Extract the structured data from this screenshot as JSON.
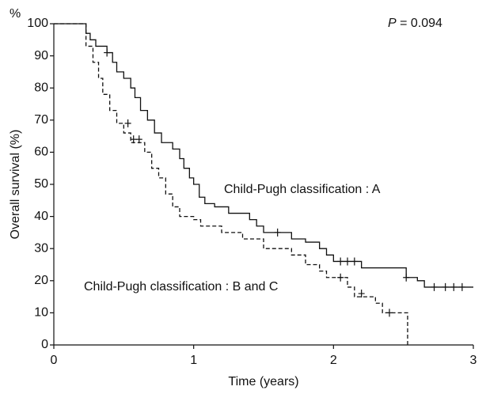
{
  "chart_data": {
    "type": "line",
    "step": true,
    "unit_label": "%",
    "p_label": "P",
    "p_value": "= 0.094",
    "xlabel": "Time (years)",
    "ylabel": "Overall survival (%)",
    "xlim": [
      0,
      3
    ],
    "ylim": [
      0,
      100
    ],
    "xticks": [
      0,
      1,
      2,
      3
    ],
    "yticks": [
      0,
      10,
      20,
      30,
      40,
      50,
      60,
      70,
      80,
      90,
      100
    ],
    "grid": false,
    "series": [
      {
        "name": "Child-Pugh classification : A",
        "color": "#111111",
        "dash": false,
        "x": [
          0,
          0.23,
          0.26,
          0.3,
          0.38,
          0.42,
          0.45,
          0.5,
          0.55,
          0.58,
          0.62,
          0.67,
          0.72,
          0.77,
          0.85,
          0.9,
          0.93,
          0.97,
          1.0,
          1.04,
          1.08,
          1.15,
          1.25,
          1.4,
          1.45,
          1.5,
          1.7,
          1.8,
          1.9,
          1.95,
          2.0,
          2.2,
          2.52,
          2.6,
          2.65,
          3.0
        ],
        "values": [
          100,
          97,
          95,
          93,
          91,
          88,
          85,
          83,
          80,
          77,
          73,
          70,
          66,
          63,
          61,
          58,
          55,
          52,
          50,
          46,
          44,
          43,
          41,
          39,
          37,
          35,
          33,
          32,
          30,
          28,
          26,
          24,
          21,
          20,
          18,
          18
        ],
        "censored_x": [
          0.38,
          1.6,
          2.05,
          2.1,
          2.15,
          2.52,
          2.72,
          2.8,
          2.86,
          2.92
        ],
        "censored_values": [
          91,
          35,
          26,
          26,
          26,
          21,
          18,
          18,
          18,
          18
        ]
      },
      {
        "name": "Child-Pugh classification : B and C",
        "color": "#111111",
        "dash": true,
        "x": [
          0,
          0.23,
          0.28,
          0.32,
          0.35,
          0.4,
          0.45,
          0.5,
          0.55,
          0.65,
          0.7,
          0.75,
          0.8,
          0.85,
          0.9,
          1.0,
          1.05,
          1.2,
          1.35,
          1.5,
          1.7,
          1.8,
          1.9,
          1.95,
          2.1,
          2.15,
          2.3,
          2.35,
          2.53
        ],
        "values": [
          100,
          93,
          88,
          83,
          78,
          73,
          69,
          66,
          63,
          60,
          55,
          52,
          47,
          43,
          40,
          39,
          37,
          35,
          33,
          30,
          28,
          25,
          23,
          21,
          18,
          15,
          13,
          10,
          0
        ],
        "censored_x": [
          0.53,
          0.57,
          0.61,
          2.05,
          2.2,
          2.4
        ],
        "censored_values": [
          69,
          64,
          64,
          21,
          16,
          10
        ]
      }
    ]
  }
}
